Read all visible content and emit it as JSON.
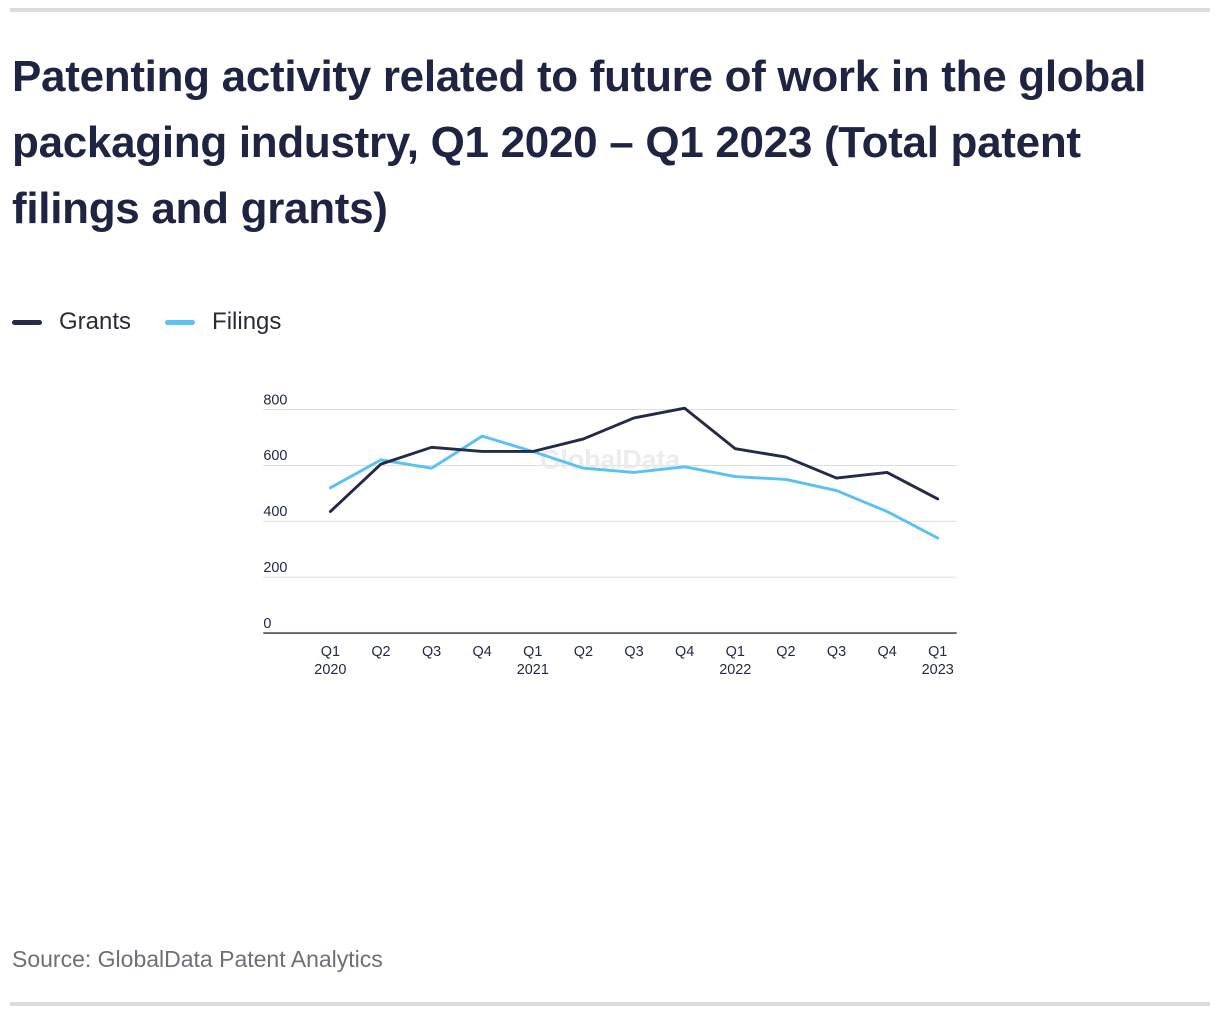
{
  "header": {
    "title": "Patenting activity related to future of work in the global packaging industry, Q1 2020 – Q1 2023 (Total patent filings and grants)"
  },
  "legend": [
    {
      "label": "Grants",
      "color": "#242a47"
    },
    {
      "label": "Filings",
      "color": "#5bc0f2"
    }
  ],
  "watermark": "GlobalData",
  "source": "Source: GlobalData Patent Analytics",
  "colors": {
    "grants_line": "#242a47",
    "filings_line": "#5bc0f2",
    "gridline": "#d9d9d9",
    "axis_line": "#242a47",
    "title_text": "#1f2442",
    "tick_text": "#242a47",
    "legend_text": "#2b2b35",
    "source_text": "#6f6f78",
    "watermark": "#ececef",
    "divider": "#dcdcdc",
    "background": "#ffffff"
  },
  "chart_data": {
    "type": "line",
    "title": "Patenting activity related to future of work in the global packaging industry, Q1 2020 – Q1 2023 (Total patent filings and grants)",
    "xlabel": "",
    "ylabel": "",
    "categories": [
      "Q1 2020",
      "Q2 2020",
      "Q3 2020",
      "Q4 2020",
      "Q1 2021",
      "Q2 2021",
      "Q3 2021",
      "Q4 2021",
      "Q1 2022",
      "Q2 2022",
      "Q3 2022",
      "Q4 2022",
      "Q1 2023"
    ],
    "x_ticks": [
      {
        "q": "Q1",
        "year": "2020"
      },
      {
        "q": "Q2"
      },
      {
        "q": "Q3"
      },
      {
        "q": "Q4"
      },
      {
        "q": "Q1",
        "year": "2021"
      },
      {
        "q": "Q2"
      },
      {
        "q": "Q3"
      },
      {
        "q": "Q4"
      },
      {
        "q": "Q1",
        "year": "2022"
      },
      {
        "q": "Q2"
      },
      {
        "q": "Q3"
      },
      {
        "q": "Q4"
      },
      {
        "q": "Q1",
        "year": "2023"
      }
    ],
    "series": [
      {
        "name": "Grants",
        "color": "#242a47",
        "values": [
          435,
          605,
          665,
          650,
          650,
          695,
          770,
          805,
          660,
          630,
          555,
          575,
          480
        ]
      },
      {
        "name": "Filings",
        "color": "#5bc0f2",
        "values": [
          520,
          620,
          590,
          705,
          650,
          590,
          575,
          595,
          560,
          550,
          510,
          435,
          340
        ]
      }
    ],
    "y_ticks": [
      0,
      200,
      400,
      600,
      800
    ],
    "ylim": [
      0,
      850
    ],
    "grid": "horizontal",
    "legend_position": "top-left"
  }
}
